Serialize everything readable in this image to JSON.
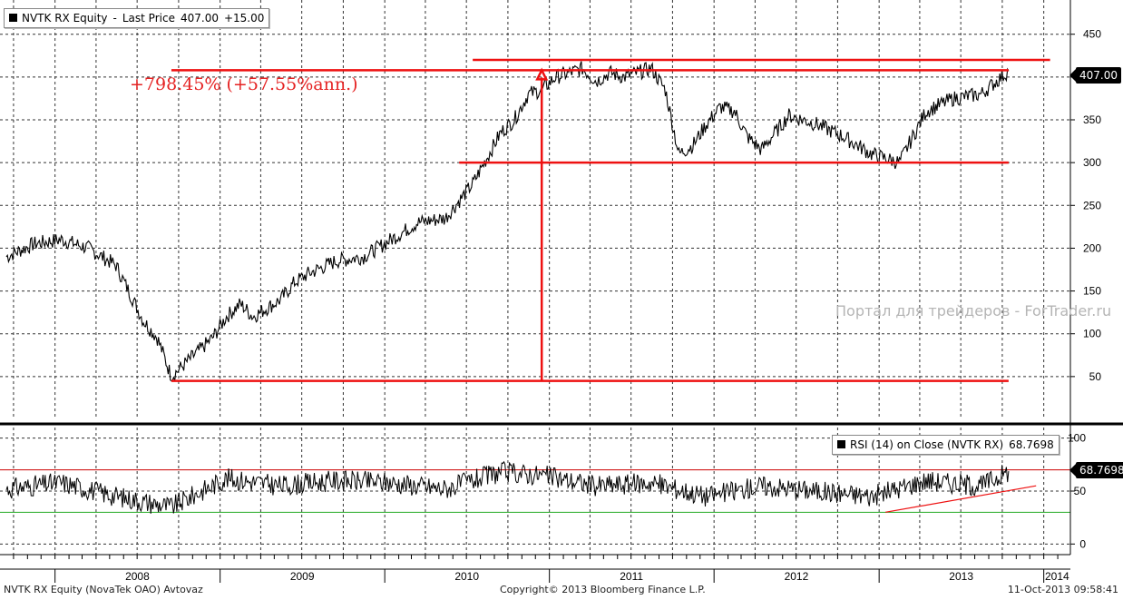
{
  "chart_data": [
    {
      "type": "line",
      "title": "NVTK RX Equity",
      "legend": {
        "series": "NVTK RX Equity",
        "metric": "Last Price",
        "last": "407.00",
        "change": "+15.00"
      },
      "last_value_tag": "407.00",
      "ylim": [
        0,
        490
      ],
      "y_ticks": [
        50,
        100,
        150,
        200,
        250,
        300,
        350,
        400,
        450
      ],
      "x_labels": [
        "2008",
        "2009",
        "2010",
        "2011",
        "2012",
        "2013",
        "2014"
      ],
      "grid": true,
      "series": [
        {
          "name": "NVTK RX Equity",
          "color": "#000000",
          "x": [
            "2007-09",
            "2007-11",
            "2008-01",
            "2008-03",
            "2008-05",
            "2008-07",
            "2008-08",
            "2008-09",
            "2008-10",
            "2008-11",
            "2008-12",
            "2009-01",
            "2009-02",
            "2009-03",
            "2009-04",
            "2009-05",
            "2009-06",
            "2009-07",
            "2009-09",
            "2009-11",
            "2010-01",
            "2010-03",
            "2010-05",
            "2010-07",
            "2010-09",
            "2010-10",
            "2010-11",
            "2010-12",
            "2011-01",
            "2011-02",
            "2011-03",
            "2011-04",
            "2011-05",
            "2011-06",
            "2011-07",
            "2011-08",
            "2011-09",
            "2011-10",
            "2011-11",
            "2011-12",
            "2012-01",
            "2012-02",
            "2012-03",
            "2012-04",
            "2012-06",
            "2012-08",
            "2012-10",
            "2012-12",
            "2013-02",
            "2013-04",
            "2013-06",
            "2013-08",
            "2013-10"
          ],
          "values": [
            190,
            205,
            210,
            200,
            180,
            115,
            95,
            50,
            65,
            80,
            95,
            120,
            135,
            120,
            130,
            140,
            160,
            170,
            185,
            190,
            210,
            230,
            235,
            275,
            335,
            350,
            380,
            385,
            400,
            405,
            410,
            395,
            405,
            400,
            405,
            410,
            385,
            310,
            320,
            345,
            365,
            360,
            330,
            315,
            355,
            345,
            330,
            310,
            300,
            360,
            375,
            380,
            407
          ],
          "min": 45,
          "max": 445
        }
      ],
      "annotations": {
        "return_text": "+798.45% (+57.55%ann.)",
        "lines": [
          {
            "kind": "support",
            "value": 45,
            "from": "2008-09",
            "to": "2013-10"
          },
          {
            "kind": "support",
            "value": 300,
            "from": "2010-06",
            "to": "2013-10"
          },
          {
            "kind": "range-low",
            "value": 408,
            "from": "2008-09",
            "to": "2013-10"
          },
          {
            "kind": "range-high",
            "value": 420,
            "from": "2010-07",
            "to": "2014-01"
          },
          {
            "kind": "arrow",
            "from_value": 45,
            "to_value": 408,
            "at": "2010-12"
          }
        ]
      }
    },
    {
      "type": "line",
      "title": "RSI (14) on Close (NVTK RX)",
      "legend": {
        "series": "RSI (14) on Close (NVTK RX)",
        "last": "68.7698"
      },
      "last_value_tag": "68.7698",
      "ylim": [
        -10,
        110
      ],
      "y_ticks": [
        0,
        50,
        100
      ],
      "overbought": 70,
      "oversold": 30,
      "trendline": {
        "from": "2013-01",
        "from_value": 30,
        "to": "2013-12",
        "to_value": 55
      },
      "series": [
        {
          "name": "RSI (14) on Close (NVTK RX)",
          "color": "#000000",
          "x": [
            "2007-09",
            "2008-01",
            "2008-05",
            "2008-09",
            "2009-01",
            "2009-05",
            "2009-09",
            "2010-01",
            "2010-05",
            "2010-09",
            "2010-12",
            "2011-04",
            "2011-08",
            "2011-12",
            "2012-04",
            "2012-08",
            "2012-12",
            "2013-04",
            "2013-08",
            "2013-10"
          ],
          "values": [
            52,
            58,
            45,
            35,
            62,
            55,
            60,
            58,
            52,
            68,
            65,
            55,
            58,
            45,
            55,
            50,
            45,
            60,
            55,
            68.77
          ]
        }
      ]
    }
  ],
  "footer": {
    "left": "NVTK RX Equity (NovaTek OAO) Avtovaz",
    "center": "Copyright© 2013 Bloomberg Finance L.P.",
    "right": "11-Oct-2013 09:58:41"
  },
  "watermark": "Портал для трейдеров - ForTrader.ru"
}
